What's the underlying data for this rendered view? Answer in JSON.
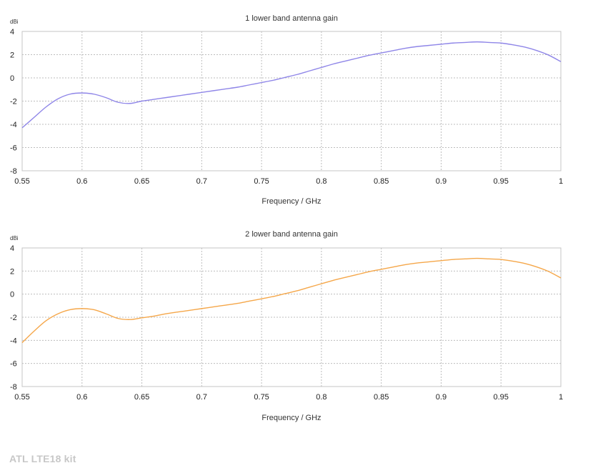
{
  "watermark": "ATL LTE18 kit",
  "chart_data": [
    {
      "type": "line",
      "title": "1 lower band antenna gain",
      "xlabel": "Frequency / GHz",
      "ylabel": "dBi",
      "xlim": [
        0.55,
        1.0
      ],
      "ylim": [
        -8,
        4
      ],
      "xticks": [
        "0.55",
        "0.6",
        "0.65",
        "0.7",
        "0.75",
        "0.8",
        "0.85",
        "0.9",
        "0.95",
        "1"
      ],
      "yticks": [
        "4",
        "2",
        "0",
        "-2",
        "-4",
        "-6",
        "-8"
      ],
      "grid": true,
      "color": "#8f86e8",
      "series": [
        {
          "x": [
            0.55,
            0.56,
            0.57,
            0.58,
            0.59,
            0.6,
            0.61,
            0.62,
            0.63,
            0.64,
            0.65,
            0.66,
            0.67,
            0.68,
            0.69,
            0.7,
            0.71,
            0.72,
            0.73,
            0.74,
            0.75,
            0.76,
            0.77,
            0.78,
            0.79,
            0.8,
            0.81,
            0.82,
            0.83,
            0.84,
            0.85,
            0.86,
            0.87,
            0.88,
            0.89,
            0.9,
            0.91,
            0.92,
            0.93,
            0.94,
            0.95,
            0.96,
            0.97,
            0.98,
            0.99,
            1.0
          ],
          "y": [
            -4.3,
            -3.4,
            -2.5,
            -1.8,
            -1.4,
            -1.3,
            -1.4,
            -1.7,
            -2.1,
            -2.2,
            -2.0,
            -1.85,
            -1.7,
            -1.55,
            -1.4,
            -1.25,
            -1.1,
            -0.95,
            -0.8,
            -0.6,
            -0.4,
            -0.2,
            0.05,
            0.3,
            0.6,
            0.9,
            1.2,
            1.45,
            1.7,
            1.95,
            2.15,
            2.35,
            2.55,
            2.7,
            2.8,
            2.9,
            3.0,
            3.05,
            3.1,
            3.05,
            3.0,
            2.85,
            2.65,
            2.35,
            1.95,
            1.4
          ]
        }
      ]
    },
    {
      "type": "line",
      "title": "2 lower band antenna gain",
      "xlabel": "Frequency / GHz",
      "ylabel": "dBi",
      "xlim": [
        0.55,
        1.0
      ],
      "ylim": [
        -8,
        4
      ],
      "xticks": [
        "0.55",
        "0.6",
        "0.65",
        "0.7",
        "0.75",
        "0.8",
        "0.85",
        "0.9",
        "0.95",
        "1"
      ],
      "yticks": [
        "4",
        "2",
        "0",
        "-2",
        "-4",
        "-6",
        "-8"
      ],
      "grid": true,
      "color": "#f5a74a",
      "series": [
        {
          "x": [
            0.55,
            0.56,
            0.57,
            0.58,
            0.59,
            0.6,
            0.61,
            0.62,
            0.63,
            0.64,
            0.65,
            0.66,
            0.67,
            0.68,
            0.69,
            0.7,
            0.71,
            0.72,
            0.73,
            0.74,
            0.75,
            0.76,
            0.77,
            0.78,
            0.79,
            0.8,
            0.81,
            0.82,
            0.83,
            0.84,
            0.85,
            0.86,
            0.87,
            0.88,
            0.89,
            0.9,
            0.91,
            0.92,
            0.93,
            0.94,
            0.95,
            0.96,
            0.97,
            0.98,
            0.99,
            1.0
          ],
          "y": [
            -4.2,
            -3.2,
            -2.3,
            -1.7,
            -1.35,
            -1.25,
            -1.35,
            -1.7,
            -2.1,
            -2.2,
            -2.05,
            -1.9,
            -1.7,
            -1.55,
            -1.4,
            -1.25,
            -1.1,
            -0.95,
            -0.8,
            -0.6,
            -0.4,
            -0.2,
            0.05,
            0.3,
            0.6,
            0.9,
            1.2,
            1.45,
            1.7,
            1.95,
            2.15,
            2.35,
            2.55,
            2.7,
            2.8,
            2.9,
            3.0,
            3.05,
            3.1,
            3.05,
            3.0,
            2.85,
            2.65,
            2.35,
            1.95,
            1.4
          ]
        }
      ]
    }
  ]
}
